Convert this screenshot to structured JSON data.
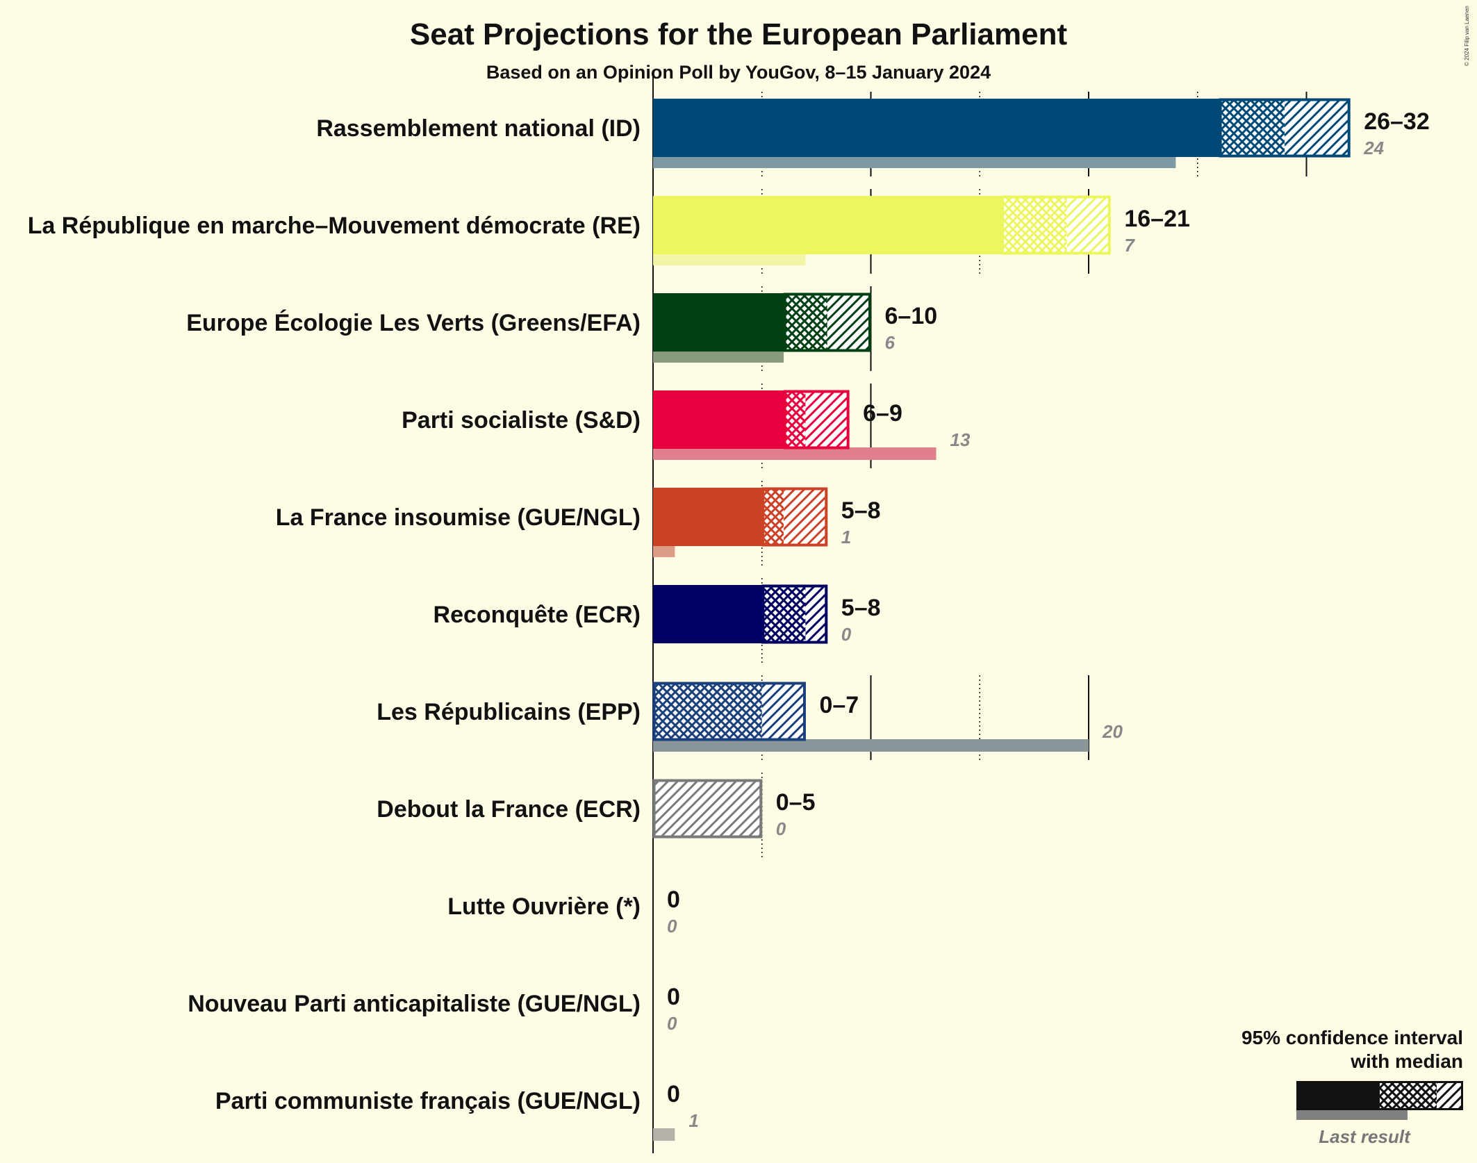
{
  "chart_data": {
    "type": "bar",
    "title": "Seat Projections for the European Parliament",
    "subtitle": "Based on an Opinion Poll by YouGov, 8–15 January 2024",
    "copyright": "© 2024 Filip van Laenen",
    "x_max": 32,
    "gridlines": [
      5,
      10,
      15,
      20,
      25,
      30
    ],
    "parties": [
      {
        "name": "Rassemblement national (ID)",
        "low": 26,
        "q1": 26,
        "median": 29,
        "high": 32,
        "range_label": "26–32",
        "last": 24,
        "last_label": "24",
        "color": "#004a77",
        "last_color": "#7f9aa3"
      },
      {
        "name": "La République en marche–Mouvement démocrate (RE)",
        "low": 16,
        "q1": 16,
        "median": 19,
        "high": 21,
        "range_label": "16–21",
        "last": 7,
        "last_label": "7",
        "color": "#ecf760",
        "last_color": "#f2f5a6"
      },
      {
        "name": "Europe Écologie Les Verts (Greens/EFA)",
        "low": 6,
        "q1": 6,
        "median": 8,
        "high": 10,
        "range_label": "6–10",
        "last": 6,
        "last_label": "6",
        "color": "#004012",
        "last_color": "#8a9a7f"
      },
      {
        "name": "Parti socialiste (S&D)",
        "low": 6,
        "q1": 6,
        "median": 7,
        "high": 9,
        "range_label": "6–9",
        "last": 13,
        "last_label": "13",
        "color": "#e8003e",
        "last_color": "#e0808c"
      },
      {
        "name": "La France insoumise (GUE/NGL)",
        "low": 5,
        "q1": 5,
        "median": 6,
        "high": 8,
        "range_label": "5–8",
        "last": 1,
        "last_label": "1",
        "color": "#cc4225",
        "last_color": "#dc9c86"
      },
      {
        "name": "Reconquête (ECR)",
        "low": 5,
        "q1": 5,
        "median": 7,
        "high": 8,
        "range_label": "5–8",
        "last": 0,
        "last_label": "0",
        "color": "#000062",
        "last_color": "#8080a8"
      },
      {
        "name": "Les Républicains (EPP)",
        "low": 0,
        "q1": 0,
        "median": 5,
        "high": 7,
        "range_label": "0–7",
        "last": 20,
        "last_label": "20",
        "color": "#1b3f7c",
        "last_color": "#8a959a"
      },
      {
        "name": "Debout la France (ECR)",
        "low": 0,
        "q1": 0,
        "median": 0,
        "high": 5,
        "range_label": "0–5",
        "last": 0,
        "last_label": "0",
        "color": "#7a7a7a",
        "last_color": "#b0b0b0"
      },
      {
        "name": "Lutte Ouvrière (*)",
        "low": 0,
        "q1": 0,
        "median": 0,
        "high": 0,
        "range_label": "0",
        "last": 0,
        "last_label": "0",
        "color": "#888888",
        "last_color": "#b0b0b0"
      },
      {
        "name": "Nouveau Parti anticapitaliste (GUE/NGL)",
        "low": 0,
        "q1": 0,
        "median": 0,
        "high": 0,
        "range_label": "0",
        "last": 0,
        "last_label": "0",
        "color": "#888888",
        "last_color": "#b0b0b0"
      },
      {
        "name": "Parti communiste français (GUE/NGL)",
        "low": 0,
        "q1": 0,
        "median": 0,
        "high": 0,
        "range_label": "0",
        "last": 1,
        "last_label": "1",
        "color": "#888888",
        "last_color": "#b3b1a8"
      }
    ],
    "legend": {
      "line1": "95% confidence interval",
      "line2": "with median",
      "last_result": "Last result"
    }
  }
}
